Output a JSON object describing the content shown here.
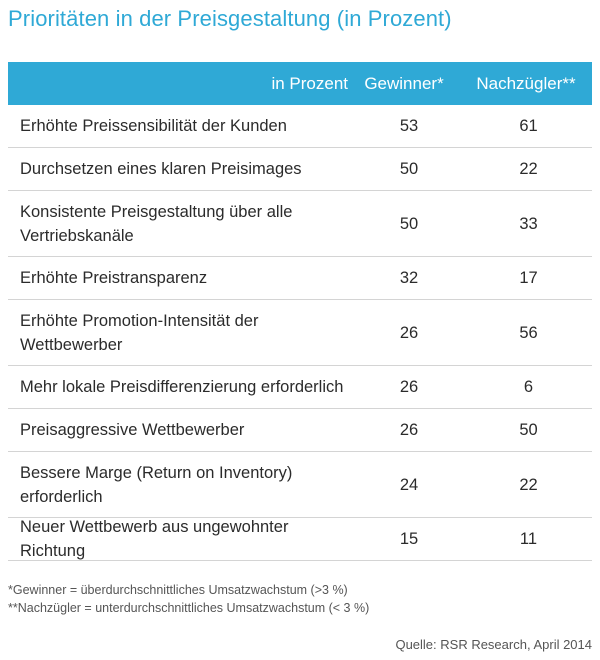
{
  "title": "Prioritäten in der Preisgestaltung (in Prozent)",
  "colors": {
    "accent": "#2fa9d6",
    "header_text": "#ffffff",
    "row_divider": "#d4d4d4"
  },
  "chart_data": {
    "type": "table",
    "title": "Prioritäten in der Preisgestaltung (in Prozent)",
    "columns": [
      "in Prozent",
      "Gewinner*",
      "Nachzügler**"
    ],
    "rows": [
      {
        "label": "Erhöhte Preissensibilität der Kunden",
        "gewinner": 53,
        "nachzuegler": 61
      },
      {
        "label": "Durchsetzen eines klaren Preisimages",
        "gewinner": 50,
        "nachzuegler": 22
      },
      {
        "label": "Konsistente Preisgestaltung über alle Vertriebskanäle",
        "gewinner": 50,
        "nachzuegler": 33
      },
      {
        "label": "Erhöhte Preistransparenz",
        "gewinner": 32,
        "nachzuegler": 17
      },
      {
        "label": "Erhöhte Promotion-Intensität der Wettbewerber",
        "gewinner": 26,
        "nachzuegler": 56
      },
      {
        "label": "Mehr lokale Preisdifferenzierung erforderlich",
        "gewinner": 26,
        "nachzuegler": 6
      },
      {
        "label": "Preisaggressive Wettbewerber",
        "gewinner": 26,
        "nachzuegler": 50
      },
      {
        "label": "Bessere Marge (Return on Inventory) erforderlich",
        "gewinner": 24,
        "nachzuegler": 22
      },
      {
        "label": "Neuer Wettbewerb aus ungewohnter Richtung",
        "gewinner": 15,
        "nachzuegler": 11
      }
    ],
    "footnotes": [
      "*Gewinner = überdurchschnittliches Umsatzwachstum (>3 %)",
      "**Nachzügler = unterdurchschnittliches Umsatzwachstum (< 3 %)"
    ],
    "source": "Quelle: RSR Research, April 2014"
  }
}
